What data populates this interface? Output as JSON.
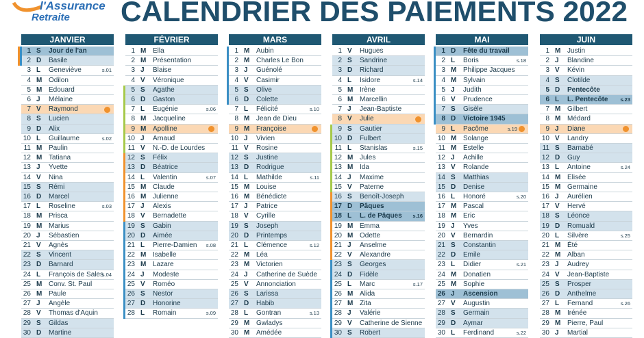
{
  "logo": {
    "line1": "l'Assurance",
    "line2": "Retraite"
  },
  "title": "CALENDRIER DES PAIEMENTS 2022",
  "months": [
    {
      "name": "JANVIER",
      "days": [
        {
          "d": 1,
          "w": "S",
          "n": "Jour de l'an",
          "holiday": true
        },
        {
          "d": 2,
          "w": "D",
          "n": "Basile"
        },
        {
          "d": 3,
          "w": "L",
          "n": "Geneviève",
          "s": "s.01"
        },
        {
          "d": 4,
          "w": "M",
          "n": "Odilon"
        },
        {
          "d": 5,
          "w": "M",
          "n": "Edouard"
        },
        {
          "d": 6,
          "w": "J",
          "n": "Mélaine"
        },
        {
          "d": 7,
          "w": "V",
          "n": "Raymond",
          "payment": true
        },
        {
          "d": 8,
          "w": "S",
          "n": "Lucien"
        },
        {
          "d": 9,
          "w": "D",
          "n": "Alix"
        },
        {
          "d": 10,
          "w": "L",
          "n": "Guillaume",
          "s": "s.02"
        },
        {
          "d": 11,
          "w": "M",
          "n": "Paulin"
        },
        {
          "d": 12,
          "w": "M",
          "n": "Tatiana"
        },
        {
          "d": 13,
          "w": "J",
          "n": "Yvette"
        },
        {
          "d": 14,
          "w": "V",
          "n": "Nina"
        },
        {
          "d": 15,
          "w": "S",
          "n": "Rémi"
        },
        {
          "d": 16,
          "w": "D",
          "n": "Marcel"
        },
        {
          "d": 17,
          "w": "L",
          "n": "Roseline",
          "s": "s.03"
        },
        {
          "d": 18,
          "w": "M",
          "n": "Prisca"
        },
        {
          "d": 19,
          "w": "M",
          "n": "Marius"
        },
        {
          "d": 20,
          "w": "J",
          "n": "Sébastien"
        },
        {
          "d": 21,
          "w": "V",
          "n": "Agnès"
        },
        {
          "d": 22,
          "w": "S",
          "n": "Vincent"
        },
        {
          "d": 23,
          "w": "D",
          "n": "Barnard"
        },
        {
          "d": 24,
          "w": "L",
          "n": "François de Sales",
          "s": "s.04"
        },
        {
          "d": 25,
          "w": "M",
          "n": "Conv. St. Paul"
        },
        {
          "d": 26,
          "w": "M",
          "n": "Paule"
        },
        {
          "d": 27,
          "w": "J",
          "n": "Angèle"
        },
        {
          "d": 28,
          "w": "V",
          "n": "Thomas d'Aquin"
        },
        {
          "d": 29,
          "w": "S",
          "n": "Gildas"
        },
        {
          "d": 30,
          "w": "D",
          "n": "Martine"
        }
      ]
    },
    {
      "name": "FÉVRIER",
      "days": [
        {
          "d": 1,
          "w": "M",
          "n": "Ella"
        },
        {
          "d": 2,
          "w": "M",
          "n": "Présentation"
        },
        {
          "d": 3,
          "w": "J",
          "n": "Blaise"
        },
        {
          "d": 4,
          "w": "V",
          "n": "Véronique"
        },
        {
          "d": 5,
          "w": "S",
          "n": "Agathe"
        },
        {
          "d": 6,
          "w": "D",
          "n": "Gaston"
        },
        {
          "d": 7,
          "w": "L",
          "n": "Eugénie",
          "s": "s.06"
        },
        {
          "d": 8,
          "w": "M",
          "n": "Jacqueline"
        },
        {
          "d": 9,
          "w": "M",
          "n": "Apolline",
          "payment": true
        },
        {
          "d": 10,
          "w": "J",
          "n": "Arnaud"
        },
        {
          "d": 11,
          "w": "V",
          "n": "N.-D. de Lourdes"
        },
        {
          "d": 12,
          "w": "S",
          "n": "Félix"
        },
        {
          "d": 13,
          "w": "D",
          "n": "Béatrice"
        },
        {
          "d": 14,
          "w": "L",
          "n": "Valentin",
          "s": "s.07"
        },
        {
          "d": 15,
          "w": "M",
          "n": "Claude"
        },
        {
          "d": 16,
          "w": "M",
          "n": "Julienne"
        },
        {
          "d": 17,
          "w": "J",
          "n": "Alexis"
        },
        {
          "d": 18,
          "w": "V",
          "n": "Bernadette"
        },
        {
          "d": 19,
          "w": "S",
          "n": "Gabin"
        },
        {
          "d": 20,
          "w": "D",
          "n": "Aimée"
        },
        {
          "d": 21,
          "w": "L",
          "n": "Pierre-Damien",
          "s": "s.08"
        },
        {
          "d": 22,
          "w": "M",
          "n": "Isabelle"
        },
        {
          "d": 23,
          "w": "M",
          "n": "Lazare"
        },
        {
          "d": 24,
          "w": "J",
          "n": "Modeste"
        },
        {
          "d": 25,
          "w": "V",
          "n": "Roméo"
        },
        {
          "d": 26,
          "w": "S",
          "n": "Nestor"
        },
        {
          "d": 27,
          "w": "D",
          "n": "Honorine"
        },
        {
          "d": 28,
          "w": "L",
          "n": "Romain",
          "s": "s.09"
        }
      ]
    },
    {
      "name": "MARS",
      "days": [
        {
          "d": 1,
          "w": "M",
          "n": "Aubin"
        },
        {
          "d": 2,
          "w": "M",
          "n": "Charles Le Bon"
        },
        {
          "d": 3,
          "w": "J",
          "n": "Guénolé"
        },
        {
          "d": 4,
          "w": "V",
          "n": "Casimir"
        },
        {
          "d": 5,
          "w": "S",
          "n": "Olive"
        },
        {
          "d": 6,
          "w": "D",
          "n": "Colette"
        },
        {
          "d": 7,
          "w": "L",
          "n": "Félicité",
          "s": "s.10"
        },
        {
          "d": 8,
          "w": "M",
          "n": "Jean de Dieu"
        },
        {
          "d": 9,
          "w": "M",
          "n": "Françoise",
          "payment": true
        },
        {
          "d": 10,
          "w": "J",
          "n": "Vivien"
        },
        {
          "d": 11,
          "w": "V",
          "n": "Rosine"
        },
        {
          "d": 12,
          "w": "S",
          "n": "Justine"
        },
        {
          "d": 13,
          "w": "D",
          "n": "Rodrigue"
        },
        {
          "d": 14,
          "w": "L",
          "n": "Mathilde",
          "s": "s.11"
        },
        {
          "d": 15,
          "w": "M",
          "n": "Louise"
        },
        {
          "d": 16,
          "w": "M",
          "n": "Bénédicte"
        },
        {
          "d": 17,
          "w": "J",
          "n": "Patrice"
        },
        {
          "d": 18,
          "w": "V",
          "n": "Cyrille"
        },
        {
          "d": 19,
          "w": "S",
          "n": "Joseph"
        },
        {
          "d": 20,
          "w": "D",
          "n": "Printemps"
        },
        {
          "d": 21,
          "w": "L",
          "n": "Clémence",
          "s": "s.12"
        },
        {
          "d": 22,
          "w": "M",
          "n": "Léa"
        },
        {
          "d": 23,
          "w": "M",
          "n": "Victorien"
        },
        {
          "d": 24,
          "w": "J",
          "n": "Catherine de Suède"
        },
        {
          "d": 25,
          "w": "V",
          "n": "Annonciation"
        },
        {
          "d": 26,
          "w": "S",
          "n": "Larissa"
        },
        {
          "d": 27,
          "w": "D",
          "n": "Habib"
        },
        {
          "d": 28,
          "w": "L",
          "n": "Gontran",
          "s": "s.13"
        },
        {
          "d": 29,
          "w": "M",
          "n": "Gwladys"
        },
        {
          "d": 30,
          "w": "M",
          "n": "Amédée"
        }
      ]
    },
    {
      "name": "AVRIL",
      "days": [
        {
          "d": 1,
          "w": "V",
          "n": "Hugues"
        },
        {
          "d": 2,
          "w": "S",
          "n": "Sandrine"
        },
        {
          "d": 3,
          "w": "D",
          "n": "Richard"
        },
        {
          "d": 4,
          "w": "L",
          "n": "Isidore",
          "s": "s.14"
        },
        {
          "d": 5,
          "w": "M",
          "n": "Irène"
        },
        {
          "d": 6,
          "w": "M",
          "n": "Marcellin"
        },
        {
          "d": 7,
          "w": "J",
          "n": "Jean-Baptiste"
        },
        {
          "d": 8,
          "w": "V",
          "n": "Julie",
          "payment": true
        },
        {
          "d": 9,
          "w": "S",
          "n": "Gautier"
        },
        {
          "d": 10,
          "w": "D",
          "n": "Fulbert"
        },
        {
          "d": 11,
          "w": "L",
          "n": "Stanislas",
          "s": "s.15"
        },
        {
          "d": 12,
          "w": "M",
          "n": "Jules"
        },
        {
          "d": 13,
          "w": "M",
          "n": "Ida"
        },
        {
          "d": 14,
          "w": "J",
          "n": "Maxime"
        },
        {
          "d": 15,
          "w": "V",
          "n": "Paterne"
        },
        {
          "d": 16,
          "w": "S",
          "n": "Benoît-Joseph"
        },
        {
          "d": 17,
          "w": "D",
          "n": "Pâques",
          "holiday": true
        },
        {
          "d": 18,
          "w": "L",
          "n": "L. de Pâques",
          "s": "s.16",
          "holiday": true
        },
        {
          "d": 19,
          "w": "M",
          "n": "Emma"
        },
        {
          "d": 20,
          "w": "M",
          "n": "Odette"
        },
        {
          "d": 21,
          "w": "J",
          "n": "Anselme"
        },
        {
          "d": 22,
          "w": "V",
          "n": "Alexandre"
        },
        {
          "d": 23,
          "w": "S",
          "n": "Georges"
        },
        {
          "d": 24,
          "w": "D",
          "n": "Fidèle"
        },
        {
          "d": 25,
          "w": "L",
          "n": "Marc",
          "s": "s.17"
        },
        {
          "d": 26,
          "w": "M",
          "n": "Alida"
        },
        {
          "d": 27,
          "w": "M",
          "n": "Zita"
        },
        {
          "d": 28,
          "w": "J",
          "n": "Valérie"
        },
        {
          "d": 29,
          "w": "V",
          "n": "Catherine de Sienne"
        },
        {
          "d": 30,
          "w": "S",
          "n": "Robert"
        }
      ]
    },
    {
      "name": "MAI",
      "days": [
        {
          "d": 1,
          "w": "D",
          "n": "Fête du travail",
          "holiday": true
        },
        {
          "d": 2,
          "w": "L",
          "n": "Boris",
          "s": "s.18"
        },
        {
          "d": 3,
          "w": "M",
          "n": "Philippe Jacques"
        },
        {
          "d": 4,
          "w": "M",
          "n": "Sylvain"
        },
        {
          "d": 5,
          "w": "J",
          "n": "Judith"
        },
        {
          "d": 6,
          "w": "V",
          "n": "Prudence"
        },
        {
          "d": 7,
          "w": "S",
          "n": "Gisèle"
        },
        {
          "d": 8,
          "w": "D",
          "n": "Victoire 1945",
          "holiday": true
        },
        {
          "d": 9,
          "w": "L",
          "n": "Pacôme",
          "s": "s.19",
          "payment": true
        },
        {
          "d": 10,
          "w": "M",
          "n": "Solange"
        },
        {
          "d": 11,
          "w": "M",
          "n": "Estelle"
        },
        {
          "d": 12,
          "w": "J",
          "n": "Achille"
        },
        {
          "d": 13,
          "w": "V",
          "n": "Rolande"
        },
        {
          "d": 14,
          "w": "S",
          "n": "Matthias"
        },
        {
          "d": 15,
          "w": "D",
          "n": "Denise"
        },
        {
          "d": 16,
          "w": "L",
          "n": "Honoré",
          "s": "s.20"
        },
        {
          "d": 17,
          "w": "M",
          "n": "Pascal"
        },
        {
          "d": 18,
          "w": "M",
          "n": "Eric"
        },
        {
          "d": 19,
          "w": "J",
          "n": "Yves"
        },
        {
          "d": 20,
          "w": "V",
          "n": "Bernardin"
        },
        {
          "d": 21,
          "w": "S",
          "n": "Constantin"
        },
        {
          "d": 22,
          "w": "D",
          "n": "Emile"
        },
        {
          "d": 23,
          "w": "L",
          "n": "Didier",
          "s": "s.21"
        },
        {
          "d": 24,
          "w": "M",
          "n": "Donatien"
        },
        {
          "d": 25,
          "w": "M",
          "n": "Sophie"
        },
        {
          "d": 26,
          "w": "J",
          "n": "Ascension",
          "holiday": true
        },
        {
          "d": 27,
          "w": "V",
          "n": "Augustin"
        },
        {
          "d": 28,
          "w": "S",
          "n": "Germain"
        },
        {
          "d": 29,
          "w": "D",
          "n": "Aymar"
        },
        {
          "d": 30,
          "w": "L",
          "n": "Ferdinand",
          "s": "s.22"
        }
      ]
    },
    {
      "name": "JUIN",
      "days": [
        {
          "d": 1,
          "w": "M",
          "n": "Justin"
        },
        {
          "d": 2,
          "w": "J",
          "n": "Blandine"
        },
        {
          "d": 3,
          "w": "V",
          "n": "Kévin"
        },
        {
          "d": 4,
          "w": "S",
          "n": "Clotilde"
        },
        {
          "d": 5,
          "w": "D",
          "n": "Pentecôte",
          "bold": true
        },
        {
          "d": 6,
          "w": "L",
          "n": "L. Pentecôte",
          "s": "s.23",
          "holiday": true
        },
        {
          "d": 7,
          "w": "M",
          "n": "Gilbert"
        },
        {
          "d": 8,
          "w": "M",
          "n": "Médard"
        },
        {
          "d": 9,
          "w": "J",
          "n": "Diane",
          "payment": true
        },
        {
          "d": 10,
          "w": "V",
          "n": "Landry"
        },
        {
          "d": 11,
          "w": "S",
          "n": "Barnabé"
        },
        {
          "d": 12,
          "w": "D",
          "n": "Guy"
        },
        {
          "d": 13,
          "w": "L",
          "n": "Antoine",
          "s": "s.24"
        },
        {
          "d": 14,
          "w": "M",
          "n": "Elisée"
        },
        {
          "d": 15,
          "w": "M",
          "n": "Germaine"
        },
        {
          "d": 16,
          "w": "J",
          "n": "Aurélien"
        },
        {
          "d": 17,
          "w": "V",
          "n": "Hervé"
        },
        {
          "d": 18,
          "w": "S",
          "n": "Léonce"
        },
        {
          "d": 19,
          "w": "D",
          "n": "Romuald"
        },
        {
          "d": 20,
          "w": "L",
          "n": "Silvère",
          "s": "s.25"
        },
        {
          "d": 21,
          "w": "M",
          "n": "Été"
        },
        {
          "d": 22,
          "w": "M",
          "n": "Alban"
        },
        {
          "d": 23,
          "w": "J",
          "n": "Audrey"
        },
        {
          "d": 24,
          "w": "V",
          "n": "Jean-Baptiste"
        },
        {
          "d": 25,
          "w": "S",
          "n": "Prosper"
        },
        {
          "d": 26,
          "w": "D",
          "n": "Anthelme"
        },
        {
          "d": 27,
          "w": "L",
          "n": "Fernand",
          "s": "s.26"
        },
        {
          "d": 28,
          "w": "M",
          "n": "Irénée"
        },
        {
          "d": 29,
          "w": "M",
          "n": "Pierre, Paul"
        },
        {
          "d": 30,
          "w": "J",
          "n": "Martial"
        }
      ]
    }
  ]
}
